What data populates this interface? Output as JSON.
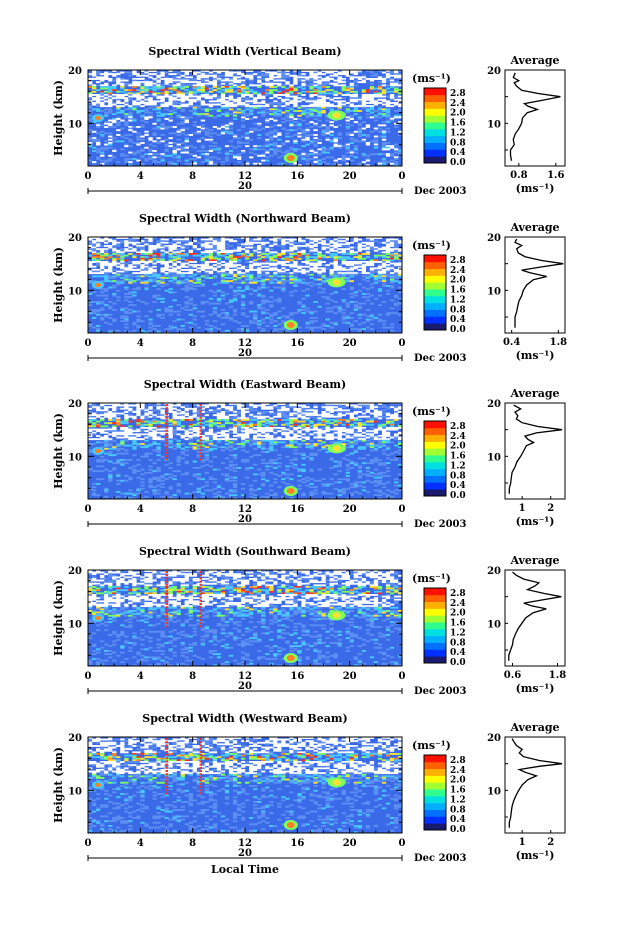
{
  "colorbar_colors": [
    "#1a1a6e",
    "#0030ff",
    "#0070ff",
    "#00b0ff",
    "#00e0e0",
    "#30ff90",
    "#a0ff30",
    "#ffff00",
    "#ffb000",
    "#ff6000",
    "#ff1000"
  ],
  "heat_colors": {
    "bg": "#3a6ae8",
    "light": "#5d8ef2",
    "cyan": "#48c8ff",
    "green": "#7dff60",
    "yellow": "#ffe030",
    "orange": "#ff8020",
    "red": "#ff3020",
    "white": "#ffffff"
  },
  "chart_data": [
    {
      "type": "heatmap",
      "title": "Spectral Width (Vertical Beam)",
      "ylabel": "Height (km)",
      "ylim": [
        2,
        20
      ],
      "yticks": [
        "20",
        "10"
      ],
      "xticks": [
        "0",
        "4",
        "8",
        "12",
        "16",
        "20",
        "0"
      ],
      "date_label": "20",
      "month_label": "Dec 2003",
      "colorbar": {
        "unit": "(ms⁻¹)",
        "ticks": [
          "2.8",
          "2.4",
          "2.0",
          "1.6",
          "1.2",
          "0.8",
          "0.4",
          "0.0"
        ]
      },
      "average": {
        "title": "Average",
        "xticks": [
          "0.8",
          "1.6"
        ],
        "unit": "(ms⁻¹)",
        "yticks": [
          "20",
          "10"
        ],
        "xlim": [
          0.5,
          1.8
        ],
        "profile": [
          [
            0.64,
            3
          ],
          [
            0.62,
            4
          ],
          [
            0.62,
            5
          ],
          [
            0.7,
            6
          ],
          [
            0.68,
            7
          ],
          [
            0.72,
            8
          ],
          [
            0.8,
            9
          ],
          [
            0.86,
            10
          ],
          [
            0.88,
            11
          ],
          [
            0.98,
            12
          ],
          [
            1.2,
            12.6
          ],
          [
            1.0,
            13.2
          ],
          [
            0.92,
            13.7
          ],
          [
            1.3,
            14.3
          ],
          [
            1.7,
            15
          ],
          [
            1.22,
            15.6
          ],
          [
            0.86,
            16.2
          ],
          [
            0.75,
            17
          ],
          [
            0.7,
            17.6
          ],
          [
            0.8,
            18
          ],
          [
            0.68,
            18.6
          ],
          [
            0.72,
            19.5
          ]
        ]
      }
    },
    {
      "type": "heatmap",
      "title": "Spectral Width (Northward Beam)",
      "ylabel": "Height (km)",
      "ylim": [
        2,
        20
      ],
      "yticks": [
        "20",
        "10"
      ],
      "xticks": [
        "0",
        "4",
        "8",
        "12",
        "16",
        "20",
        "0"
      ],
      "date_label": "20",
      "month_label": "Dec 2003",
      "colorbar": {
        "unit": "(ms⁻¹)",
        "ticks": [
          "2.8",
          "2.4",
          "2.0",
          "1.6",
          "1.2",
          "0.8",
          "0.4",
          "0.0"
        ]
      },
      "average": {
        "title": "Average",
        "xticks": [
          "0.4",
          "1.8"
        ],
        "unit": "(ms⁻¹)",
        "yticks": [
          "20",
          "10"
        ],
        "xlim": [
          0.2,
          2.0
        ],
        "profile": [
          [
            0.5,
            3
          ],
          [
            0.5,
            4
          ],
          [
            0.5,
            5
          ],
          [
            0.55,
            6
          ],
          [
            0.58,
            7
          ],
          [
            0.62,
            8
          ],
          [
            0.7,
            9
          ],
          [
            0.75,
            10
          ],
          [
            0.85,
            11
          ],
          [
            1.05,
            12
          ],
          [
            1.45,
            12.6
          ],
          [
            0.95,
            13.3
          ],
          [
            0.7,
            13.8
          ],
          [
            1.3,
            14.4
          ],
          [
            1.95,
            15
          ],
          [
            1.3,
            15.6
          ],
          [
            0.8,
            16.3
          ],
          [
            0.6,
            17
          ],
          [
            0.55,
            17.8
          ],
          [
            0.7,
            18.4
          ],
          [
            0.5,
            19
          ],
          [
            0.55,
            19.6
          ]
        ]
      }
    },
    {
      "type": "heatmap",
      "title": "Spectral Width (Eastward Beam)",
      "ylabel": "Height (km)",
      "ylim": [
        2,
        20
      ],
      "yticks": [
        "20",
        "10"
      ],
      "xticks": [
        "0",
        "4",
        "8",
        "12",
        "16",
        "20",
        "0"
      ],
      "date_label": "20",
      "month_label": "Dec 2003",
      "colorbar": {
        "unit": "(ms⁻¹)",
        "ticks": [
          "2.8",
          "2.4",
          "2.0",
          "1.6",
          "1.2",
          "0.8",
          "0.4",
          "0.0"
        ]
      },
      "average": {
        "title": "Average",
        "xticks": [
          "1",
          "2"
        ],
        "unit": "(ms⁻¹)",
        "yticks": [
          "20",
          "10"
        ],
        "xlim": [
          0.4,
          2.5
        ],
        "profile": [
          [
            0.55,
            3
          ],
          [
            0.55,
            4
          ],
          [
            0.6,
            5
          ],
          [
            0.62,
            6
          ],
          [
            0.65,
            7
          ],
          [
            0.75,
            8
          ],
          [
            0.82,
            9
          ],
          [
            0.95,
            10
          ],
          [
            1.05,
            11
          ],
          [
            1.15,
            12
          ],
          [
            1.4,
            12.6
          ],
          [
            1.2,
            13.2
          ],
          [
            1.1,
            13.8
          ],
          [
            1.5,
            14.4
          ],
          [
            2.4,
            15
          ],
          [
            1.55,
            15.6
          ],
          [
            1.0,
            16.3
          ],
          [
            0.8,
            17
          ],
          [
            0.85,
            17.6
          ],
          [
            0.75,
            18.3
          ],
          [
            0.95,
            18.9
          ],
          [
            0.7,
            19.6
          ]
        ]
      }
    },
    {
      "type": "heatmap",
      "title": "Spectral Width (Southward Beam)",
      "ylabel": "Height (km)",
      "ylim": [
        2,
        20
      ],
      "yticks": [
        "20",
        "10"
      ],
      "xticks": [
        "0",
        "4",
        "8",
        "12",
        "16",
        "20",
        "0"
      ],
      "date_label": "20",
      "month_label": "Dec 2003",
      "colorbar": {
        "unit": "(ms⁻¹)",
        "ticks": [
          "2.8",
          "2.4",
          "2.0",
          "1.6",
          "1.2",
          "0.8",
          "0.4",
          "0.0"
        ]
      },
      "average": {
        "title": "Average",
        "xticks": [
          "0.6",
          "1.8"
        ],
        "unit": "(ms⁻¹)",
        "yticks": [
          "20",
          "10"
        ],
        "xlim": [
          0.4,
          2.0
        ],
        "profile": [
          [
            0.5,
            3
          ],
          [
            0.5,
            4
          ],
          [
            0.55,
            5
          ],
          [
            0.6,
            6
          ],
          [
            0.62,
            7
          ],
          [
            0.68,
            8
          ],
          [
            0.75,
            9
          ],
          [
            0.85,
            10
          ],
          [
            0.95,
            11
          ],
          [
            1.15,
            12
          ],
          [
            1.5,
            12.7
          ],
          [
            1.1,
            13.3
          ],
          [
            0.9,
            13.8
          ],
          [
            1.4,
            14.4
          ],
          [
            1.9,
            15
          ],
          [
            1.45,
            15.6
          ],
          [
            1.0,
            16.3
          ],
          [
            1.2,
            17
          ],
          [
            1.3,
            17.6
          ],
          [
            0.9,
            18.3
          ],
          [
            0.7,
            19
          ],
          [
            0.6,
            19.6
          ]
        ]
      }
    },
    {
      "type": "heatmap",
      "title": "Spectral Width (Westward Beam)",
      "ylabel": "Height (km)",
      "ylim": [
        2,
        20
      ],
      "yticks": [
        "20",
        "10"
      ],
      "xticks": [
        "0",
        "4",
        "8",
        "12",
        "16",
        "20",
        "0"
      ],
      "date_label": "20",
      "month_label": "Dec 2003",
      "xlabel": "Local Time",
      "colorbar": {
        "unit": "(ms⁻¹)",
        "ticks": [
          "2.8",
          "2.4",
          "2.0",
          "1.6",
          "1.2",
          "0.8",
          "0.4",
          "0.0"
        ]
      },
      "average": {
        "title": "Average",
        "xticks": [
          "1",
          "2"
        ],
        "unit": "(ms⁻¹)",
        "yticks": [
          "20",
          "10"
        ],
        "xlim": [
          0.4,
          2.5
        ],
        "profile": [
          [
            0.55,
            3
          ],
          [
            0.55,
            4
          ],
          [
            0.6,
            5
          ],
          [
            0.62,
            6
          ],
          [
            0.65,
            7
          ],
          [
            0.7,
            8
          ],
          [
            0.78,
            9
          ],
          [
            0.88,
            10
          ],
          [
            1.0,
            11
          ],
          [
            1.2,
            12
          ],
          [
            1.5,
            12.7
          ],
          [
            1.1,
            13.4
          ],
          [
            0.9,
            13.9
          ],
          [
            1.6,
            14.5
          ],
          [
            2.4,
            15
          ],
          [
            1.6,
            15.6
          ],
          [
            1.05,
            16.3
          ],
          [
            0.9,
            17
          ],
          [
            1.0,
            17.7
          ],
          [
            0.8,
            18.4
          ],
          [
            0.7,
            19.2
          ],
          [
            0.65,
            19.7
          ]
        ]
      }
    }
  ]
}
